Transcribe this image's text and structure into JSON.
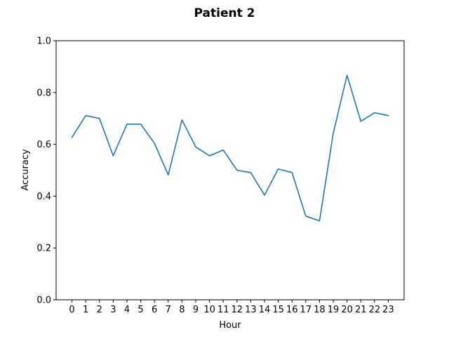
{
  "chart_data": {
    "type": "line",
    "title": "Patient 2",
    "xlabel": "Hour",
    "ylabel": "Accuracy",
    "x": [
      0,
      1,
      2,
      3,
      4,
      5,
      6,
      7,
      8,
      9,
      10,
      11,
      12,
      13,
      14,
      15,
      16,
      17,
      18,
      19,
      20,
      21,
      22,
      23
    ],
    "series": [
      {
        "color": "#1f77b4",
        "values": [
          0.627,
          0.711,
          0.7,
          0.556,
          0.678,
          0.678,
          0.604,
          0.482,
          0.694,
          0.59,
          0.556,
          0.578,
          0.5,
          0.491,
          0.404,
          0.505,
          0.491,
          0.323,
          0.305,
          0.643,
          0.867,
          0.689,
          0.722,
          0.711
        ]
      }
    ],
    "xticks": [
      "0",
      "1",
      "2",
      "3",
      "4",
      "5",
      "6",
      "7",
      "8",
      "9",
      "10",
      "11",
      "12",
      "13",
      "14",
      "15",
      "16",
      "17",
      "18",
      "19",
      "20",
      "21",
      "22",
      "23"
    ],
    "yticks": [
      "0.0",
      "0.2",
      "0.4",
      "0.6",
      "0.8",
      "1.0"
    ],
    "ytick_values": [
      0.0,
      0.2,
      0.4,
      0.6,
      0.8,
      1.0
    ],
    "ylim": [
      0,
      1
    ],
    "xlim": [
      -1.15,
      24.15
    ],
    "grid": false,
    "legend": "none"
  }
}
